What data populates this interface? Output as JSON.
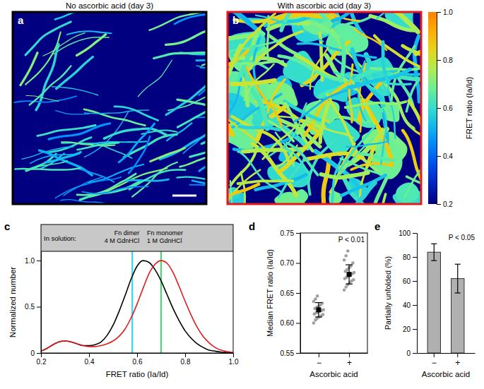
{
  "chart_data": [
    {
      "type": "image",
      "panel_label": "a",
      "title": "No ascorbic acid (day 3)",
      "color": "#000000"
    },
    {
      "type": "image",
      "panel_label": "b",
      "title": "With ascorbic acid (day 3)",
      "color": "#e41a1c",
      "colorbar": {
        "label": "FRET ratio (Ia/Id)",
        "range": [
          0.2,
          1.0
        ],
        "ticks": [
          0.2,
          0.4,
          0.6,
          0.8,
          {
            "value": 1.0,
            "label": "1.0"
          }
        ]
      }
    },
    {
      "type": "line",
      "panel_label": "c",
      "x_label": "FRET ratio (Ia/Id)",
      "y_label": "Normalized number",
      "annotations": [
        "In solution:"
      ],
      "reference_lines": [
        {
          "x": 0.58,
          "color": "#2fd3e6",
          "label": [
            "Fn dimer",
            "4 M GdnHCl"
          ]
        },
        {
          "x": 0.7,
          "color": "#3ddc6a",
          "label": [
            "Fn monomer",
            "1 M GdnHCl"
          ]
        }
      ],
      "x": [
        0.2,
        0.225,
        0.25,
        0.275,
        0.3,
        0.325,
        0.35,
        0.375,
        0.4,
        0.425,
        0.45,
        0.475,
        0.5,
        0.525,
        0.55,
        0.575,
        0.6,
        0.625,
        0.65,
        0.675,
        0.7,
        0.725,
        0.75,
        0.775,
        0.8,
        0.825,
        0.85,
        0.875,
        0.9,
        0.925,
        0.95,
        0.975,
        1.0
      ],
      "series": [
        {
          "color": "#000000",
          "values": [
            0.02,
            0.05,
            0.09,
            0.12,
            0.13,
            0.12,
            0.1,
            0.08,
            0.08,
            0.09,
            0.12,
            0.19,
            0.3,
            0.45,
            0.62,
            0.8,
            0.94,
            1.0,
            0.98,
            0.9,
            0.78,
            0.63,
            0.48,
            0.35,
            0.24,
            0.16,
            0.1,
            0.06,
            0.03,
            0.02,
            0.01,
            0.005,
            0
          ]
        },
        {
          "color": "#e41a1c",
          "values": [
            0.02,
            0.05,
            0.09,
            0.12,
            0.13,
            0.12,
            0.1,
            0.08,
            0.07,
            0.07,
            0.08,
            0.1,
            0.13,
            0.18,
            0.26,
            0.38,
            0.53,
            0.7,
            0.86,
            0.96,
            1.0,
            0.97,
            0.87,
            0.72,
            0.56,
            0.41,
            0.28,
            0.18,
            0.11,
            0.06,
            0.03,
            0.015,
            0.005
          ]
        }
      ],
      "xlim": [
        0.2,
        1.0
      ],
      "xticks": [
        0.2,
        0.4,
        0.6,
        0.8,
        {
          "value": 1.0,
          "label": "1.0"
        }
      ],
      "ylim": [
        0,
        1.1
      ],
      "yticks": [
        0,
        0.5,
        {
          "value": 1.0,
          "label": "1.0"
        }
      ]
    },
    {
      "type": "scatter",
      "panel_label": "d",
      "x_label": "Ascorbic acid",
      "y_label": "Median FRET ratio (Ia/Id)",
      "annotations": [
        "P < 0.01"
      ],
      "categories": [
        "−",
        "+"
      ],
      "color": "#a0a0a0",
      "marker": "circle",
      "points": [
        [
          0.6,
          0.605,
          0.608,
          0.61,
          0.612,
          0.614,
          0.615,
          0.617,
          0.618,
          0.62,
          0.621,
          0.622,
          0.624,
          0.626,
          0.628,
          0.63,
          0.633,
          0.636,
          0.64,
          0.645
        ],
        [
          0.655,
          0.66,
          0.664,
          0.667,
          0.67,
          0.672,
          0.674,
          0.676,
          0.678,
          0.68,
          0.682,
          0.684,
          0.686,
          0.689,
          0.692,
          0.695,
          0.7,
          0.705,
          0.712,
          0.72
        ]
      ],
      "means": [
        0.622,
        0.681
      ],
      "errors": [
        0.012,
        0.016
      ],
      "ylim": [
        0.55,
        0.75
      ],
      "yticks": [
        0.55,
        {
          "value": 0.6,
          "label": "0.60"
        },
        0.65,
        {
          "value": 0.7,
          "label": "0.70"
        },
        0.75
      ]
    },
    {
      "type": "bar",
      "panel_label": "e",
      "x_label": "Ascorbic acid",
      "y_label": "Partially unfolded (%)",
      "annotations": [
        "P < 0.05"
      ],
      "categories": [
        "−",
        "+"
      ],
      "values": [
        84,
        62
      ],
      "errors": [
        7,
        12
      ],
      "color": "#b0b0b0",
      "ylim": [
        0,
        100
      ],
      "yticks": [
        0,
        20,
        40,
        60,
        80,
        100
      ]
    }
  ]
}
